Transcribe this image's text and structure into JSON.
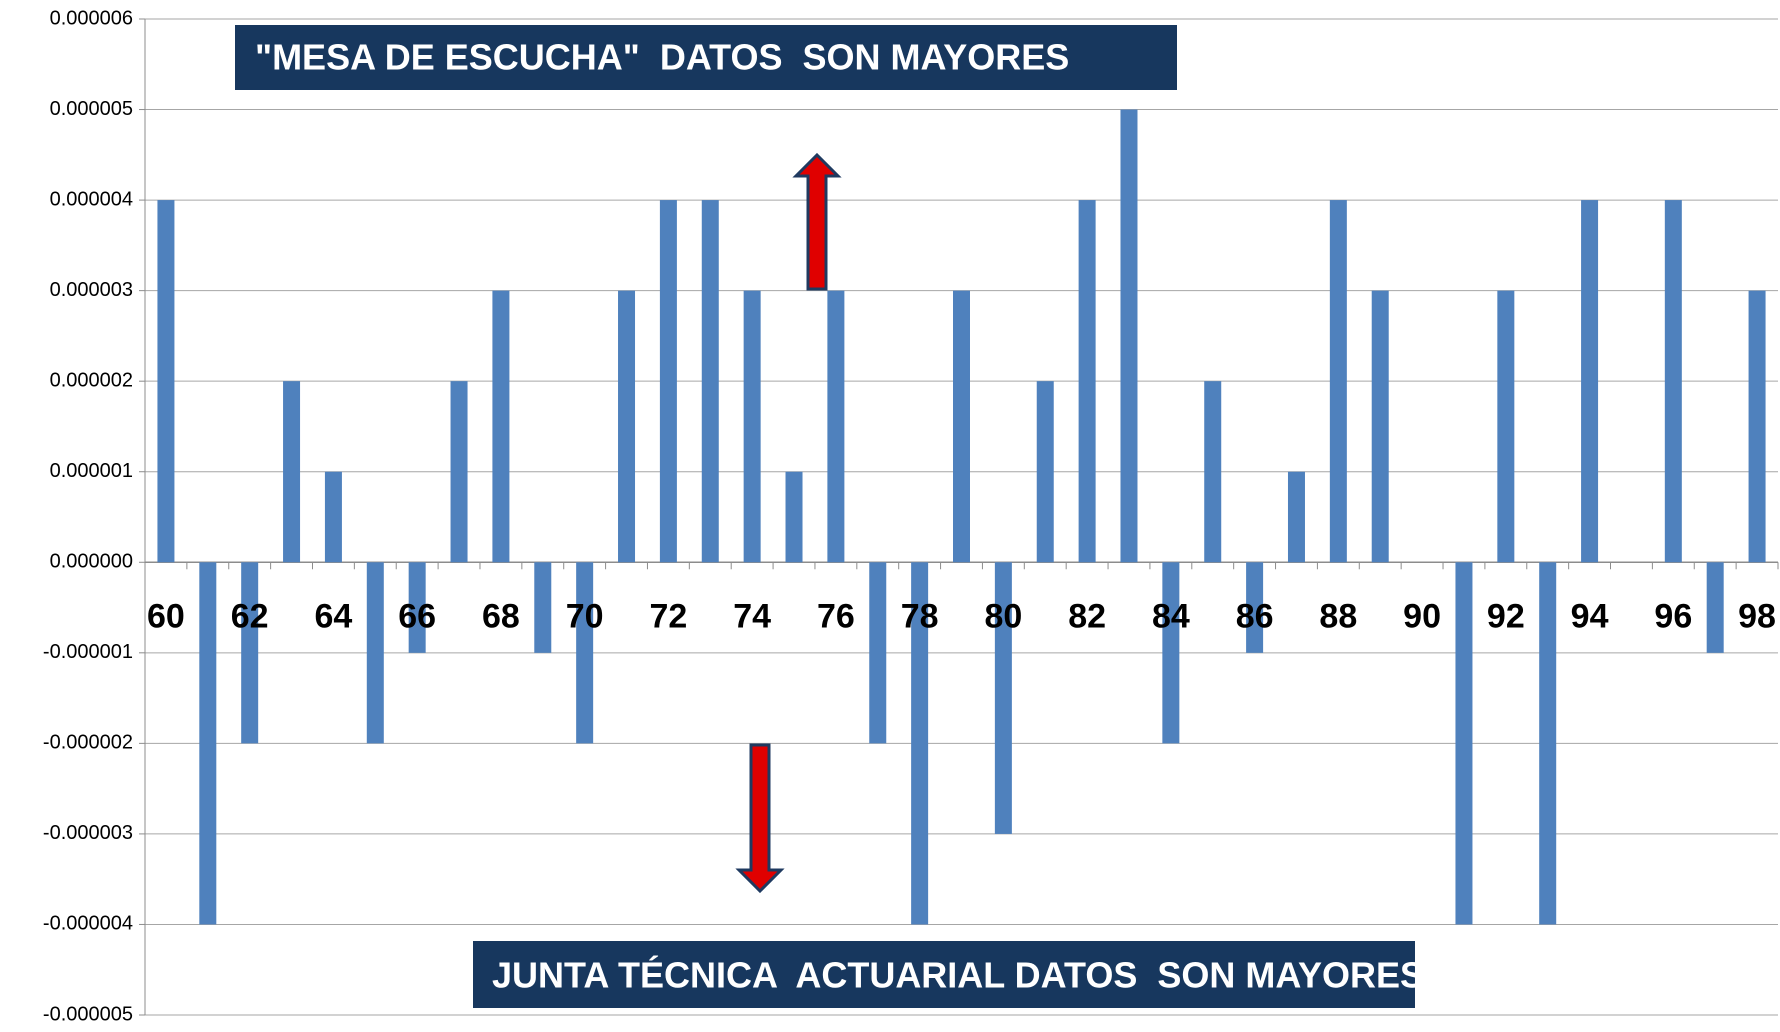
{
  "chart_data": {
    "type": "bar",
    "annotations": [
      "\"MESA DE ESCUCHA\"  DATOS  SON MAYORES",
      "JUNTA TÉCNICA  ACTUARIAL DATOS  SON MAYORES"
    ],
    "categories": [
      "60",
      null,
      "62",
      null,
      "64",
      null,
      "66",
      null,
      "68",
      null,
      "70",
      null,
      "72",
      null,
      "74",
      null,
      "76",
      null,
      "78",
      null,
      "80",
      null,
      "82",
      null,
      "84",
      null,
      "86",
      null,
      "88",
      null,
      "90",
      null,
      "92",
      null,
      "94",
      null,
      "96",
      null,
      "98"
    ],
    "values": [
      4e-06,
      -4e-06,
      -2e-06,
      2e-06,
      1e-06,
      -2e-06,
      -1e-06,
      2e-06,
      3e-06,
      -1e-06,
      -2e-06,
      3e-06,
      4e-06,
      4e-06,
      3e-06,
      1e-06,
      3e-06,
      -2e-06,
      -4e-06,
      3e-06,
      -3e-06,
      2e-06,
      4e-06,
      5e-06,
      -2e-06,
      2e-06,
      -1e-06,
      1e-06,
      4e-06,
      3e-06,
      0,
      -4e-06,
      3e-06,
      -4e-06,
      4e-06,
      0,
      4e-06,
      -1e-06,
      3e-06
    ],
    "color": "#4f81bd",
    "ylim": [
      -5e-06,
      6e-06
    ],
    "yticks": [
      {
        "value": -5e-06,
        "label": "-0.000005"
      },
      {
        "value": -4e-06,
        "label": "-0.000004"
      },
      {
        "value": -3e-06,
        "label": "-0.000003"
      },
      {
        "value": -2e-06,
        "label": "-0.000002"
      },
      {
        "value": -1e-06,
        "label": "-0.000001"
      },
      {
        "value": 0,
        "label": "0.000000"
      },
      {
        "value": 1e-06,
        "label": "0.000001"
      },
      {
        "value": 2e-06,
        "label": "0.000002"
      },
      {
        "value": 3e-06,
        "label": "0.000003"
      },
      {
        "value": 4e-06,
        "label": "0.000004"
      },
      {
        "value": 5e-06,
        "label": "0.000005"
      },
      {
        "value": 6e-06,
        "label": "0.000006"
      }
    ],
    "grid": true
  }
}
